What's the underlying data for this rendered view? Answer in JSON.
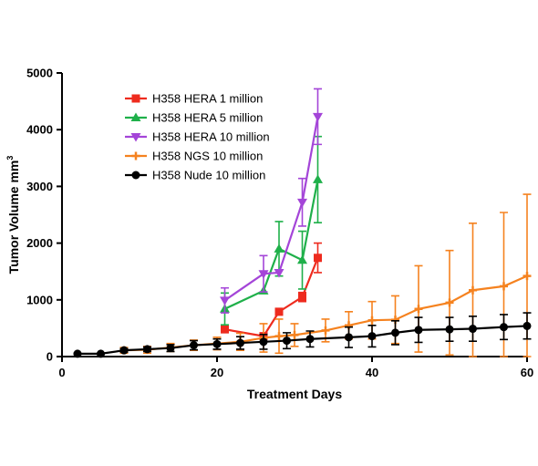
{
  "chart_data": {
    "type": "line",
    "xlabel": "Treatment Days",
    "ylabel": "Tumor Volume mm",
    "ylabel_superscript": "3",
    "xlim": [
      0,
      60
    ],
    "ylim": [
      0,
      5000
    ],
    "xticks": [
      0,
      20,
      40,
      60
    ],
    "yticks": [
      0,
      1000,
      2000,
      3000,
      4000,
      5000
    ],
    "legend_position": "top-left",
    "grid": false,
    "series": [
      {
        "name": "H358 HERA 1 million",
        "color": "#ee2b1e",
        "marker": "square",
        "x": [
          21,
          26,
          28,
          31,
          33
        ],
        "y": [
          480,
          360,
          790,
          1050,
          1740
        ],
        "err": [
          0,
          0,
          40,
          80,
          260
        ]
      },
      {
        "name": "H358 HERA 5 million",
        "color": "#1fb04a",
        "marker": "triangle-up",
        "x": [
          21,
          26,
          28,
          31,
          33
        ],
        "y": [
          840,
          1160,
          1900,
          1700,
          3120
        ],
        "err": [
          280,
          0,
          480,
          510,
          760
        ]
      },
      {
        "name": "H358 HERA 10 million",
        "color": "#a445d8",
        "marker": "triangle-down",
        "x": [
          21,
          26,
          28,
          31,
          33
        ],
        "y": [
          990,
          1460,
          1480,
          2720,
          4230
        ],
        "err": [
          220,
          320,
          0,
          420,
          490
        ]
      },
      {
        "name": "H358 NGS 10 million",
        "color": "#f5821f",
        "marker": "plus",
        "x": [
          8,
          11,
          14,
          17,
          20,
          23,
          26,
          28,
          30,
          34,
          37,
          40,
          43,
          46,
          50,
          53,
          57,
          60
        ],
        "y": [
          110,
          120,
          160,
          200,
          230,
          260,
          330,
          360,
          380,
          460,
          550,
          640,
          650,
          840,
          950,
          1170,
          1240,
          1420
        ],
        "err": [
          50,
          60,
          70,
          90,
          110,
          150,
          250,
          300,
          200,
          200,
          240,
          330,
          420,
          760,
          920,
          1180,
          1300,
          1440
        ]
      },
      {
        "name": "H358 Nude 10 million",
        "color": "#000000",
        "marker": "circle",
        "x": [
          2,
          5,
          8,
          11,
          14,
          17,
          20,
          23,
          26,
          29,
          32,
          37,
          40,
          43,
          46,
          50,
          53,
          57,
          60
        ],
        "y": [
          50,
          50,
          110,
          130,
          150,
          200,
          220,
          240,
          260,
          280,
          310,
          340,
          360,
          420,
          470,
          480,
          490,
          520,
          540
        ],
        "err": [
          10,
          10,
          30,
          40,
          60,
          80,
          90,
          110,
          130,
          140,
          140,
          180,
          190,
          210,
          220,
          210,
          220,
          220,
          230
        ]
      }
    ]
  }
}
